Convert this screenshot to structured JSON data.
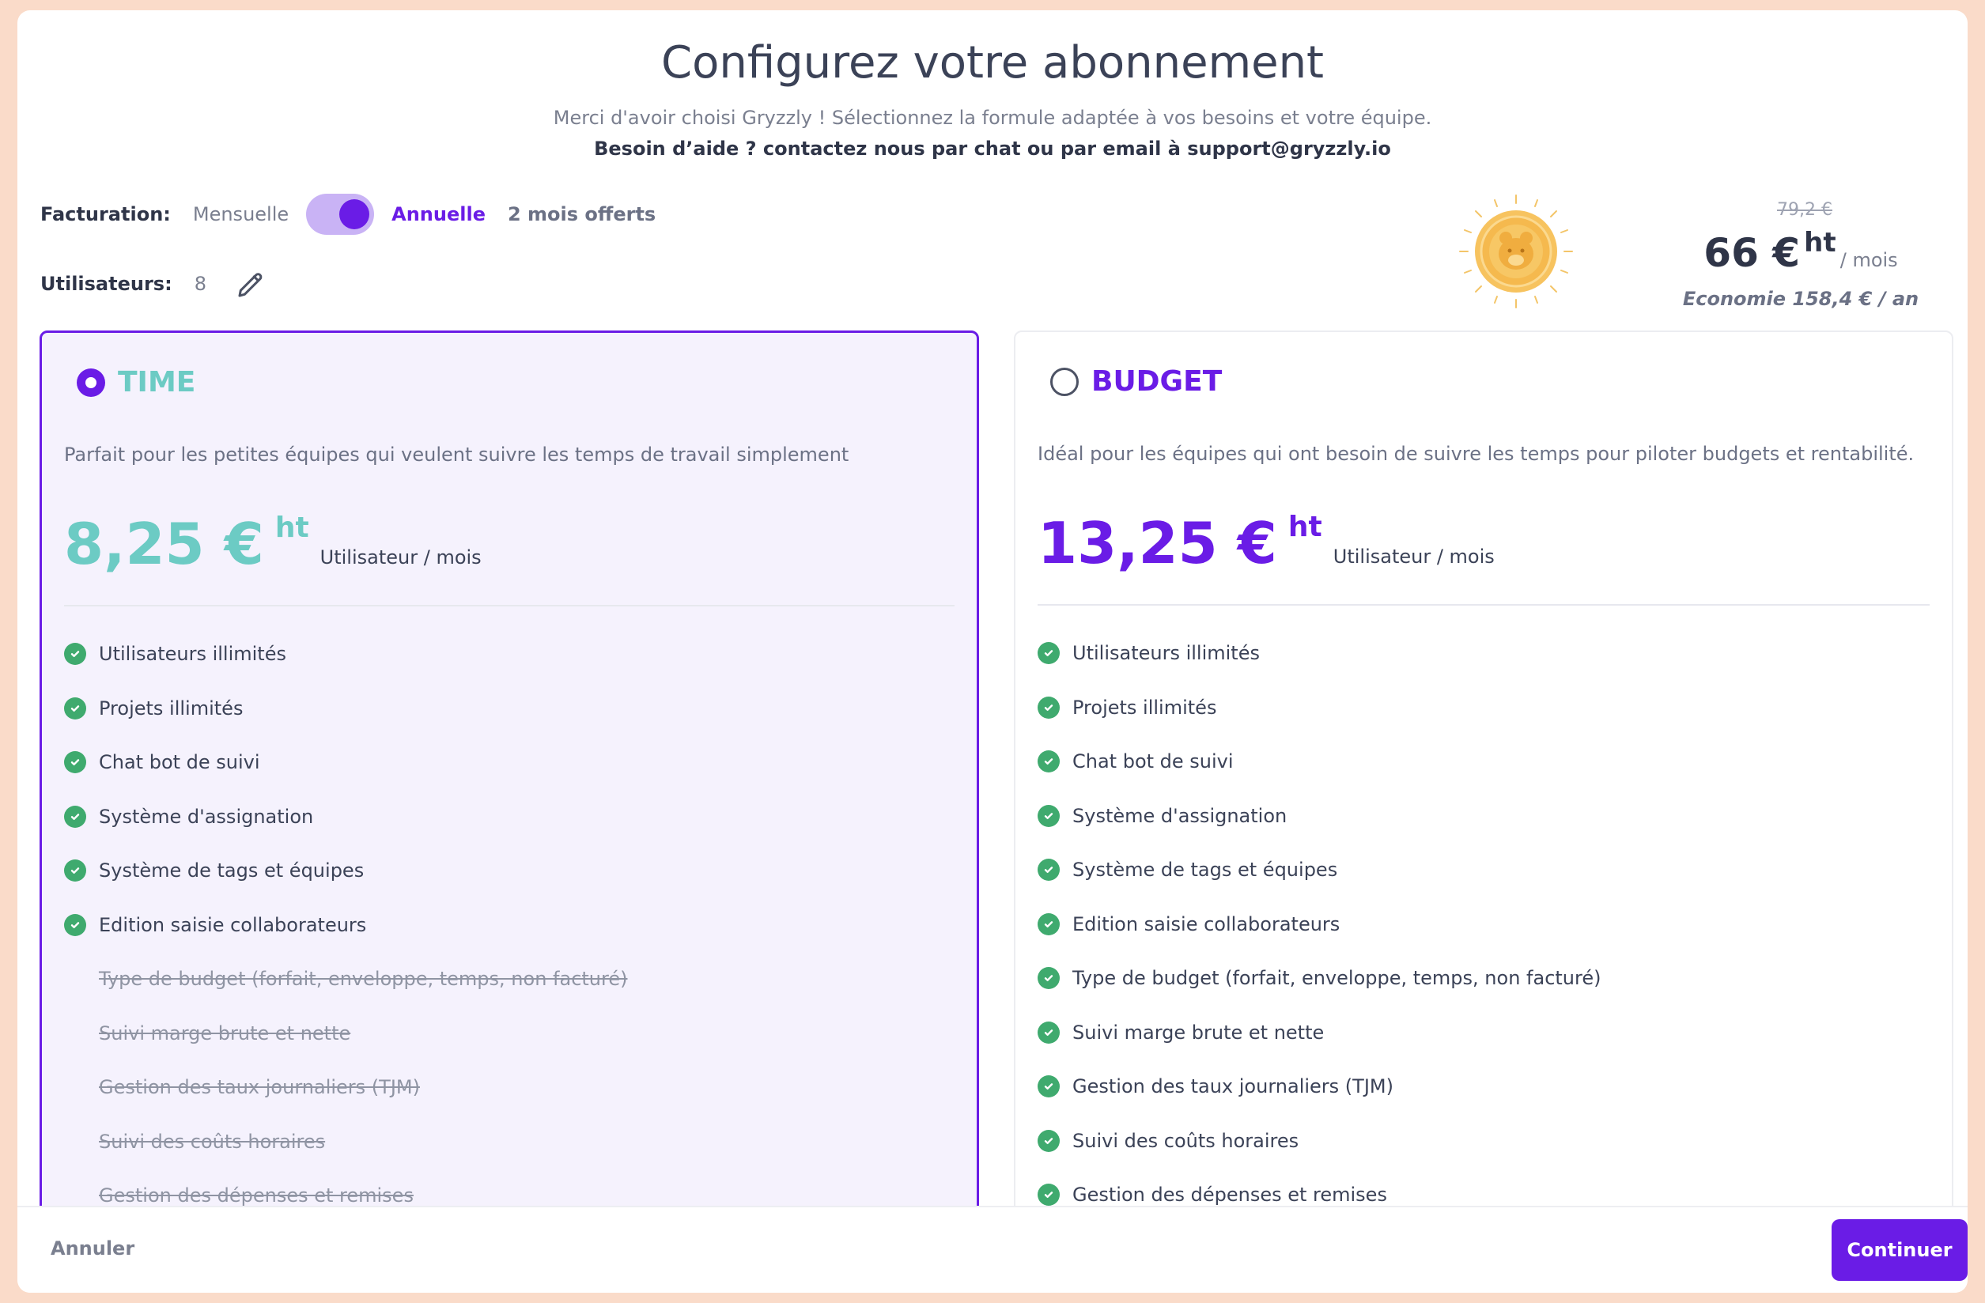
{
  "header": {
    "title": "Configurez votre abonnement",
    "subtitle": "Merci d'avoir choisi Gryzzly ! Sélectionnez la formule adaptée à vos besoins et votre équipe.",
    "help": "Besoin d’aide ? contactez nous par chat ou par email à support@gryzzly.io"
  },
  "billing": {
    "label": "Facturation:",
    "monthly": "Mensuelle",
    "annual": "Annuelle",
    "offer": "2 mois offerts",
    "annual_selected": true
  },
  "users": {
    "label": "Utilisateurs:",
    "count": "8"
  },
  "summary": {
    "old_price": "79,2 €",
    "price": "66 €",
    "ht": "ht",
    "per": "/ mois",
    "saving": "Economie 158,4 € / an"
  },
  "plans": [
    {
      "name": "TIME",
      "selected": true,
      "color": "#6ccbc4",
      "description": "Parfait pour les petites équipes qui veulent suivre les temps de travail simplement",
      "price": "8,25 €",
      "ht": "ht",
      "unit": "Utilisateur / mois",
      "features": [
        {
          "label": "Utilisateurs illimités",
          "included": true
        },
        {
          "label": "Projets illimités",
          "included": true
        },
        {
          "label": "Chat bot de suivi",
          "included": true
        },
        {
          "label": "Système d'assignation",
          "included": true
        },
        {
          "label": "Système de tags et équipes",
          "included": true
        },
        {
          "label": "Edition saisie collaborateurs",
          "included": true
        },
        {
          "label": "Type de budget (forfait, enveloppe, temps, non facturé)",
          "included": false
        },
        {
          "label": "Suivi marge brute et nette",
          "included": false
        },
        {
          "label": "Gestion des taux journaliers (TJM)",
          "included": false
        },
        {
          "label": "Suivi des coûts horaires",
          "included": false
        },
        {
          "label": "Gestion des dépenses et remises",
          "included": false
        }
      ]
    },
    {
      "name": "BUDGET",
      "selected": false,
      "color": "#6a1ce6",
      "description": "Idéal pour les équipes qui ont besoin de suivre les temps pour piloter budgets et rentabilité.",
      "price": "13,25 €",
      "ht": "ht",
      "unit": "Utilisateur / mois",
      "features": [
        {
          "label": "Utilisateurs illimités",
          "included": true
        },
        {
          "label": "Projets illimités",
          "included": true
        },
        {
          "label": "Chat bot de suivi",
          "included": true
        },
        {
          "label": "Système d'assignation",
          "included": true
        },
        {
          "label": "Système de tags et équipes",
          "included": true
        },
        {
          "label": "Edition saisie collaborateurs",
          "included": true
        },
        {
          "label": "Type de budget (forfait, enveloppe, temps, non facturé)",
          "included": true
        },
        {
          "label": "Suivi marge brute et nette",
          "included": true
        },
        {
          "label": "Gestion des taux journaliers (TJM)",
          "included": true
        },
        {
          "label": "Suivi des coûts horaires",
          "included": true
        },
        {
          "label": "Gestion des dépenses et remises",
          "included": true
        }
      ]
    }
  ],
  "footer": {
    "cancel": "Annuler",
    "continue": "Continuer"
  },
  "icons": {
    "edit": "pencil-icon",
    "check": "check-circle-icon",
    "coin": "bear-coin-icon"
  }
}
